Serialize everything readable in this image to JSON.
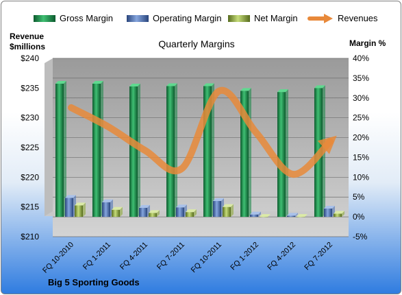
{
  "chart_data": {
    "type": "bar",
    "title": "Quarterly Margins",
    "footer": "Big 5 Sporting Goods",
    "left_axis_label": [
      "Revenue",
      "$millions"
    ],
    "right_axis_label": "Margin %",
    "categories": [
      "FQ 10-2010",
      "FQ 1-2011",
      "FQ 4-2011",
      "FQ 7-2011",
      "FQ 10-2011",
      "FQ 1-2012",
      "FQ 4-2012",
      "FQ 7-2012"
    ],
    "left_ticks": [
      "$240",
      "$235",
      "$230",
      "$225",
      "$220",
      "$215",
      "$210"
    ],
    "right_ticks": [
      "40%",
      "35%",
      "30%",
      "25%",
      "20%",
      "15%",
      "10%",
      "5%",
      "0%",
      "-5%"
    ],
    "left_ylim": [
      210,
      240
    ],
    "right_ylim": [
      -5,
      40
    ],
    "series": [
      {
        "name": "Gross Margin",
        "axis": "right",
        "color": "#1f8a4c",
        "values": [
          33.6,
          33.6,
          32.9,
          33.0,
          33.0,
          31.8,
          31.5,
          32.5
        ]
      },
      {
        "name": "Operating Margin",
        "axis": "right",
        "color": "#4f74b8",
        "values": [
          4.8,
          3.7,
          2.3,
          2.4,
          4.0,
          0.6,
          0.3,
          2.1
        ]
      },
      {
        "name": "Net Margin",
        "axis": "right",
        "color": "#8faa3c",
        "values": [
          2.9,
          1.8,
          1.0,
          1.2,
          2.5,
          0.0,
          0.0,
          0.8
        ]
      },
      {
        "name": "Revenues",
        "axis": "left",
        "color": "#e8893a",
        "type": "line",
        "values": [
          231.7,
          228.5,
          224.5,
          221.5,
          234.5,
          227.5,
          220.5,
          226.0
        ]
      }
    ],
    "grid": true,
    "legend_position": "top"
  }
}
